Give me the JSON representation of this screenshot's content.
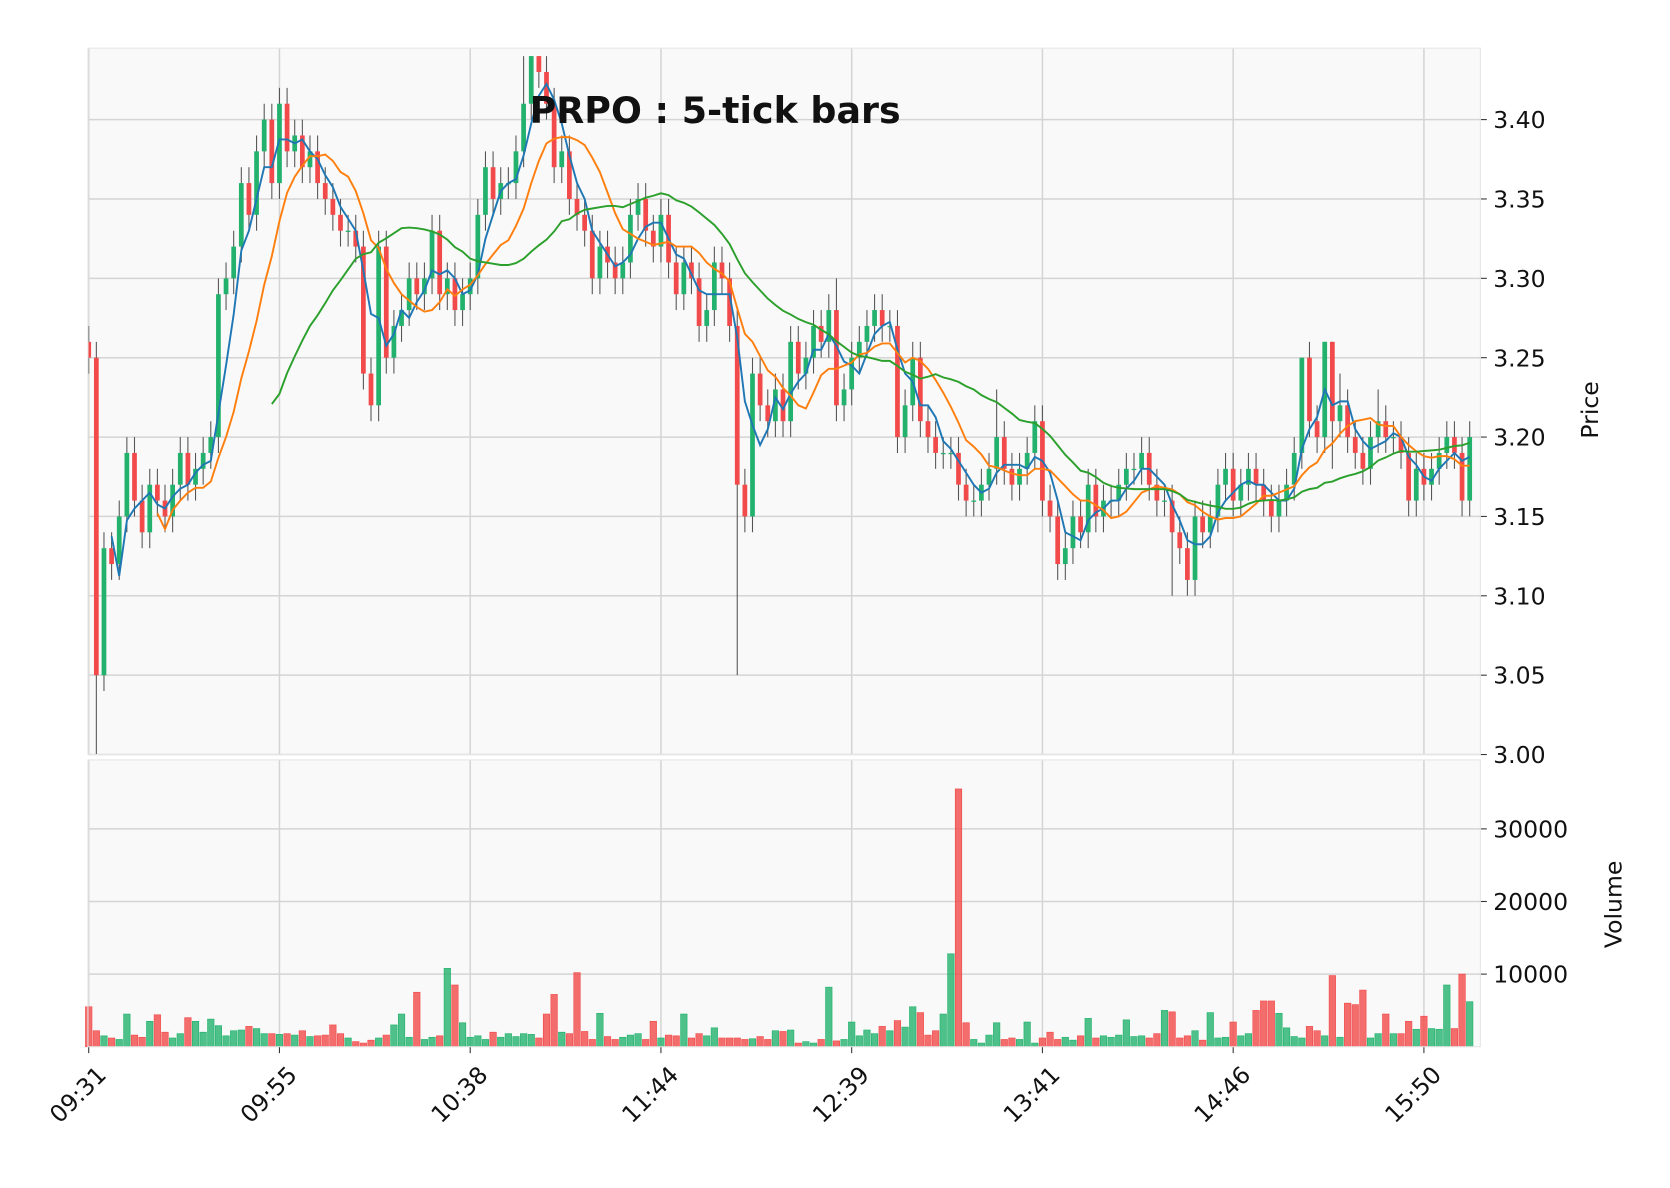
{
  "chart_data": {
    "type": "candlestick",
    "title": "PRPO : 5-tick bars",
    "ylabel": "Price",
    "volume_label": "Volume",
    "xlim": [
      -0.1,
      182.4
    ],
    "xticks": [
      {
        "value": 0,
        "label": "09:31"
      },
      {
        "value": 25,
        "label": "09:55"
      },
      {
        "value": 50,
        "label": "10:38"
      },
      {
        "value": 75,
        "label": "11:44"
      },
      {
        "value": 100,
        "label": "12:39"
      },
      {
        "value": 125,
        "label": "13:41"
      },
      {
        "value": 150,
        "label": "14:46"
      },
      {
        "value": 175,
        "label": "15:50"
      }
    ],
    "ylim": [
      3.0,
      3.445
    ],
    "yticks": [
      {
        "value": 3.0,
        "label": "3.00"
      },
      3.05,
      {
        "value": 3.1,
        "label": "3.10"
      },
      3.15,
      {
        "value": 3.2,
        "label": "3.20"
      },
      3.25,
      {
        "value": 3.3,
        "label": "3.30"
      },
      3.35,
      {
        "value": 3.4,
        "label": "3.40"
      }
    ],
    "volume_ylim": [
      0,
      39500
    ],
    "volume_yticks": [
      10000,
      20000,
      30000
    ],
    "grid": true,
    "up_color": "#23b26d",
    "down_color": "#f24a4a",
    "moving_averages": [
      {
        "window": 4,
        "color": "#1f77b4"
      },
      {
        "window": 10,
        "color": "#ff7f0e"
      },
      {
        "window": 25,
        "color": "#2ca02c"
      }
    ],
    "ohlc": [
      [
        3.26,
        3.27,
        3.24,
        3.25
      ],
      [
        3.25,
        3.26,
        3.0,
        3.05
      ],
      [
        3.05,
        3.14,
        3.04,
        3.13
      ],
      [
        3.13,
        3.14,
        3.11,
        3.12
      ],
      [
        3.12,
        3.16,
        3.11,
        3.15
      ],
      [
        3.15,
        3.2,
        3.14,
        3.19
      ],
      [
        3.19,
        3.2,
        3.15,
        3.16
      ],
      [
        3.16,
        3.17,
        3.13,
        3.14
      ],
      [
        3.14,
        3.18,
        3.13,
        3.17
      ],
      [
        3.17,
        3.18,
        3.15,
        3.16
      ],
      [
        3.16,
        3.17,
        3.14,
        3.15
      ],
      [
        3.15,
        3.18,
        3.14,
        3.17
      ],
      [
        3.17,
        3.2,
        3.16,
        3.19
      ],
      [
        3.19,
        3.2,
        3.16,
        3.17
      ],
      [
        3.17,
        3.19,
        3.16,
        3.18
      ],
      [
        3.18,
        3.2,
        3.17,
        3.19
      ],
      [
        3.19,
        3.21,
        3.18,
        3.2
      ],
      [
        3.2,
        3.3,
        3.19,
        3.29
      ],
      [
        3.29,
        3.31,
        3.28,
        3.3
      ],
      [
        3.3,
        3.33,
        3.29,
        3.32
      ],
      [
        3.32,
        3.37,
        3.31,
        3.36
      ],
      [
        3.36,
        3.37,
        3.33,
        3.34
      ],
      [
        3.34,
        3.39,
        3.33,
        3.38
      ],
      [
        3.38,
        3.41,
        3.37,
        3.4
      ],
      [
        3.4,
        3.41,
        3.35,
        3.36
      ],
      [
        3.36,
        3.42,
        3.35,
        3.41
      ],
      [
        3.41,
        3.42,
        3.37,
        3.38
      ],
      [
        3.38,
        3.4,
        3.37,
        3.39
      ],
      [
        3.39,
        3.4,
        3.36,
        3.37
      ],
      [
        3.37,
        3.39,
        3.36,
        3.38
      ],
      [
        3.38,
        3.39,
        3.35,
        3.36
      ],
      [
        3.36,
        3.37,
        3.34,
        3.35
      ],
      [
        3.35,
        3.36,
        3.33,
        3.34
      ],
      [
        3.34,
        3.35,
        3.32,
        3.33
      ],
      [
        3.33,
        3.34,
        3.32,
        3.33
      ],
      [
        3.33,
        3.34,
        3.31,
        3.32
      ],
      [
        3.32,
        3.33,
        3.23,
        3.24
      ],
      [
        3.24,
        3.25,
        3.21,
        3.22
      ],
      [
        3.22,
        3.33,
        3.21,
        3.32
      ],
      [
        3.32,
        3.33,
        3.24,
        3.25
      ],
      [
        3.25,
        3.28,
        3.24,
        3.27
      ],
      [
        3.27,
        3.29,
        3.26,
        3.28
      ],
      [
        3.28,
        3.31,
        3.27,
        3.3
      ],
      [
        3.3,
        3.31,
        3.28,
        3.29
      ],
      [
        3.29,
        3.31,
        3.28,
        3.3
      ],
      [
        3.3,
        3.34,
        3.29,
        3.33
      ],
      [
        3.33,
        3.34,
        3.28,
        3.29
      ],
      [
        3.29,
        3.31,
        3.28,
        3.3
      ],
      [
        3.3,
        3.31,
        3.27,
        3.28
      ],
      [
        3.28,
        3.3,
        3.27,
        3.29
      ],
      [
        3.29,
        3.31,
        3.28,
        3.3
      ],
      [
        3.3,
        3.35,
        3.29,
        3.34
      ],
      [
        3.34,
        3.38,
        3.33,
        3.37
      ],
      [
        3.37,
        3.38,
        3.34,
        3.35
      ],
      [
        3.35,
        3.37,
        3.34,
        3.36
      ],
      [
        3.36,
        3.37,
        3.35,
        3.36
      ],
      [
        3.36,
        3.39,
        3.35,
        3.38
      ],
      [
        3.38,
        3.44,
        3.37,
        3.41
      ],
      [
        3.41,
        3.44,
        3.4,
        3.44
      ],
      [
        3.44,
        3.44,
        3.42,
        3.43
      ],
      [
        3.43,
        3.44,
        3.4,
        3.41
      ],
      [
        3.41,
        3.42,
        3.36,
        3.37
      ],
      [
        3.37,
        3.39,
        3.36,
        3.38
      ],
      [
        3.38,
        3.39,
        3.34,
        3.35
      ],
      [
        3.35,
        3.36,
        3.33,
        3.34
      ],
      [
        3.34,
        3.35,
        3.32,
        3.33
      ],
      [
        3.33,
        3.34,
        3.29,
        3.3
      ],
      [
        3.3,
        3.33,
        3.29,
        3.32
      ],
      [
        3.32,
        3.33,
        3.3,
        3.31
      ],
      [
        3.31,
        3.32,
        3.29,
        3.3
      ],
      [
        3.3,
        3.32,
        3.29,
        3.31
      ],
      [
        3.31,
        3.35,
        3.3,
        3.34
      ],
      [
        3.34,
        3.36,
        3.33,
        3.35
      ],
      [
        3.35,
        3.36,
        3.32,
        3.33
      ],
      [
        3.33,
        3.34,
        3.31,
        3.32
      ],
      [
        3.32,
        3.35,
        3.31,
        3.34
      ],
      [
        3.34,
        3.35,
        3.3,
        3.31
      ],
      [
        3.31,
        3.32,
        3.28,
        3.29
      ],
      [
        3.29,
        3.32,
        3.28,
        3.31
      ],
      [
        3.31,
        3.32,
        3.29,
        3.3
      ],
      [
        3.3,
        3.31,
        3.26,
        3.27
      ],
      [
        3.27,
        3.29,
        3.26,
        3.28
      ],
      [
        3.28,
        3.32,
        3.27,
        3.31
      ],
      [
        3.31,
        3.32,
        3.29,
        3.3
      ],
      [
        3.3,
        3.31,
        3.26,
        3.27
      ],
      [
        3.27,
        3.28,
        3.05,
        3.17
      ],
      [
        3.17,
        3.18,
        3.14,
        3.15
      ],
      [
        3.15,
        3.25,
        3.14,
        3.24
      ],
      [
        3.24,
        3.25,
        3.21,
        3.22
      ],
      [
        3.22,
        3.23,
        3.2,
        3.21
      ],
      [
        3.21,
        3.24,
        3.2,
        3.23
      ],
      [
        3.23,
        3.24,
        3.2,
        3.21
      ],
      [
        3.21,
        3.27,
        3.2,
        3.26
      ],
      [
        3.26,
        3.27,
        3.23,
        3.24
      ],
      [
        3.24,
        3.26,
        3.23,
        3.25
      ],
      [
        3.25,
        3.28,
        3.24,
        3.27
      ],
      [
        3.27,
        3.28,
        3.25,
        3.26
      ],
      [
        3.26,
        3.29,
        3.25,
        3.28
      ],
      [
        3.28,
        3.3,
        3.21,
        3.22
      ],
      [
        3.22,
        3.24,
        3.21,
        3.23
      ],
      [
        3.23,
        3.26,
        3.22,
        3.25
      ],
      [
        3.25,
        3.27,
        3.24,
        3.26
      ],
      [
        3.26,
        3.28,
        3.25,
        3.27
      ],
      [
        3.27,
        3.29,
        3.26,
        3.28
      ],
      [
        3.28,
        3.29,
        3.26,
        3.27
      ],
      [
        3.27,
        3.28,
        3.26,
        3.27
      ],
      [
        3.27,
        3.28,
        3.19,
        3.2
      ],
      [
        3.2,
        3.23,
        3.19,
        3.22
      ],
      [
        3.22,
        3.26,
        3.21,
        3.25
      ],
      [
        3.25,
        3.26,
        3.2,
        3.21
      ],
      [
        3.21,
        3.22,
        3.19,
        3.2
      ],
      [
        3.2,
        3.21,
        3.18,
        3.19
      ],
      [
        3.19,
        3.2,
        3.18,
        3.19
      ],
      [
        3.19,
        3.2,
        3.18,
        3.19
      ],
      [
        3.19,
        3.2,
        3.16,
        3.17
      ],
      [
        3.17,
        3.18,
        3.15,
        3.16
      ],
      [
        3.16,
        3.17,
        3.15,
        3.16
      ],
      [
        3.16,
        3.18,
        3.15,
        3.17
      ],
      [
        3.17,
        3.19,
        3.16,
        3.18
      ],
      [
        3.18,
        3.23,
        3.17,
        3.2
      ],
      [
        3.2,
        3.21,
        3.17,
        3.18
      ],
      [
        3.18,
        3.19,
        3.16,
        3.17
      ],
      [
        3.17,
        3.19,
        3.16,
        3.18
      ],
      [
        3.18,
        3.2,
        3.17,
        3.19
      ],
      [
        3.19,
        3.22,
        3.18,
        3.21
      ],
      [
        3.21,
        3.22,
        3.15,
        3.16
      ],
      [
        3.16,
        3.17,
        3.14,
        3.15
      ],
      [
        3.15,
        3.16,
        3.11,
        3.12
      ],
      [
        3.12,
        3.14,
        3.11,
        3.13
      ],
      [
        3.13,
        3.16,
        3.12,
        3.15
      ],
      [
        3.15,
        3.16,
        3.13,
        3.14
      ],
      [
        3.14,
        3.18,
        3.13,
        3.17
      ],
      [
        3.17,
        3.18,
        3.14,
        3.15
      ],
      [
        3.15,
        3.17,
        3.14,
        3.16
      ],
      [
        3.16,
        3.17,
        3.15,
        3.16
      ],
      [
        3.16,
        3.18,
        3.15,
        3.17
      ],
      [
        3.17,
        3.19,
        3.16,
        3.18
      ],
      [
        3.18,
        3.19,
        3.17,
        3.18
      ],
      [
        3.18,
        3.2,
        3.17,
        3.19
      ],
      [
        3.19,
        3.2,
        3.16,
        3.17
      ],
      [
        3.17,
        3.18,
        3.15,
        3.16
      ],
      [
        3.16,
        3.17,
        3.15,
        3.16
      ],
      [
        3.16,
        3.17,
        3.1,
        3.14
      ],
      [
        3.14,
        3.15,
        3.12,
        3.13
      ],
      [
        3.13,
        3.14,
        3.1,
        3.11
      ],
      [
        3.11,
        3.16,
        3.1,
        3.15
      ],
      [
        3.15,
        3.16,
        3.13,
        3.14
      ],
      [
        3.14,
        3.16,
        3.13,
        3.15
      ],
      [
        3.15,
        3.18,
        3.14,
        3.17
      ],
      [
        3.17,
        3.19,
        3.16,
        3.18
      ],
      [
        3.18,
        3.19,
        3.15,
        3.16
      ],
      [
        3.16,
        3.18,
        3.15,
        3.17
      ],
      [
        3.17,
        3.19,
        3.16,
        3.18
      ],
      [
        3.18,
        3.19,
        3.16,
        3.17
      ],
      [
        3.17,
        3.18,
        3.15,
        3.16
      ],
      [
        3.16,
        3.17,
        3.14,
        3.15
      ],
      [
        3.15,
        3.17,
        3.14,
        3.16
      ],
      [
        3.16,
        3.18,
        3.15,
        3.17
      ],
      [
        3.17,
        3.2,
        3.16,
        3.19
      ],
      [
        3.19,
        3.25,
        3.18,
        3.25
      ],
      [
        3.25,
        3.26,
        3.2,
        3.21
      ],
      [
        3.21,
        3.22,
        3.19,
        3.2
      ],
      [
        3.2,
        3.26,
        3.19,
        3.26
      ],
      [
        3.26,
        3.26,
        3.18,
        3.21
      ],
      [
        3.21,
        3.24,
        3.2,
        3.22
      ],
      [
        3.22,
        3.23,
        3.19,
        3.2
      ],
      [
        3.2,
        3.21,
        3.18,
        3.19
      ],
      [
        3.19,
        3.2,
        3.17,
        3.18
      ],
      [
        3.18,
        3.21,
        3.17,
        3.2
      ],
      [
        3.2,
        3.23,
        3.19,
        3.21
      ],
      [
        3.21,
        3.22,
        3.19,
        3.2
      ],
      [
        3.2,
        3.21,
        3.19,
        3.2
      ],
      [
        3.2,
        3.21,
        3.18,
        3.19
      ],
      [
        3.19,
        3.2,
        3.15,
        3.16
      ],
      [
        3.16,
        3.19,
        3.15,
        3.18
      ],
      [
        3.18,
        3.19,
        3.16,
        3.17
      ],
      [
        3.17,
        3.19,
        3.16,
        3.18
      ],
      [
        3.18,
        3.2,
        3.17,
        3.19
      ],
      [
        3.19,
        3.21,
        3.18,
        3.2
      ],
      [
        3.2,
        3.21,
        3.18,
        3.19
      ],
      [
        3.19,
        3.2,
        3.15,
        3.16
      ],
      [
        3.16,
        3.21,
        3.15,
        3.2
      ]
    ],
    "volume": [
      5500,
      2200,
      1500,
      1200,
      1000,
      4500,
      1600,
      1300,
      3500,
      4400,
      2000,
      1200,
      1800,
      4000,
      3500,
      2000,
      3800,
      2900,
      1500,
      2200,
      2300,
      2800,
      2500,
      1800,
      1800,
      1700,
      1800,
      1600,
      2200,
      1400,
      1500,
      1600,
      3000,
      1800,
      1200,
      700,
      500,
      900,
      1200,
      1600,
      3000,
      4500,
      1300,
      7500,
      1000,
      1300,
      1500,
      10800,
      8500,
      3300,
      1300,
      1500,
      1000,
      2000,
      1300,
      1800,
      1400,
      1800,
      1700,
      1200,
      4500,
      7200,
      2000,
      1800,
      10200,
      2100,
      1000,
      4600,
      1400,
      1000,
      1300,
      1600,
      1800,
      1000,
      3500,
      1200,
      1600,
      1500,
      4500,
      1200,
      1800,
      1500,
      2600,
      1200,
      1200,
      1200,
      1000,
      1100,
      1400,
      1000,
      2200,
      2100,
      2300,
      500,
      700,
      500,
      1000,
      8200,
      800,
      1000,
      3400,
      1500,
      2300,
      1800,
      2800,
      2200,
      3600,
      2700,
      5500,
      4700,
      1600,
      2200,
      4500,
      12800,
      35500,
      3300,
      1000,
      500,
      1600,
      3300,
      1000,
      1200,
      1000,
      3400,
      500,
      1200,
      2000,
      1000,
      1300,
      900,
      1500,
      3900,
      1200,
      1500,
      1300,
      1600,
      3700,
      1400,
      1500,
      1200,
      1800,
      5000,
      4800,
      1200,
      1500,
      2200,
      900,
      4700,
      1200,
      1300,
      3400,
      1500,
      1800,
      5000,
      6300,
      6300,
      4600,
      2600,
      1400,
      1200,
      2800,
      2200,
      1500,
      9800,
      1300,
      6000,
      5800,
      7800,
      1200,
      1800,
      4500,
      1800,
      1800,
      3500,
      2400,
      4200,
      2500,
      2400,
      8500,
      2500,
      10000,
      6200
    ]
  }
}
